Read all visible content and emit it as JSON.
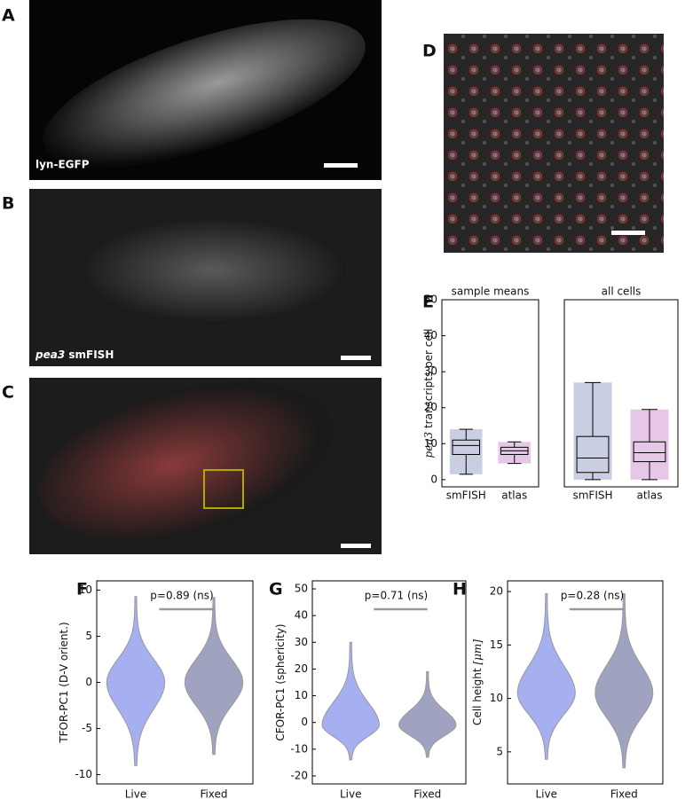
{
  "panels": [
    {
      "label": "A",
      "caption": "lyn-EGFP"
    },
    {
      "label": "B",
      "caption_italic": "pea3",
      "caption": "smFISH"
    },
    {
      "label": "C"
    },
    {
      "label": "D"
    },
    {
      "label": "E"
    },
    {
      "label": "F"
    },
    {
      "label": "G"
    },
    {
      "label": "H"
    }
  ],
  "chart_data": [
    {
      "type": "box",
      "title": "sample means",
      "ylabel_italic": "pea3",
      "ylabel": "transcripts per cell",
      "categories": [
        "smFISH",
        "atlas"
      ],
      "colors": [
        "#2a3a8c",
        "#a020a0"
      ],
      "whislo": [
        1.5,
        4.5
      ],
      "q1": [
        7,
        7
      ],
      "med": [
        9.5,
        8
      ],
      "q3": [
        11,
        9
      ],
      "whishi": [
        14,
        10.5
      ],
      "ylim": [
        -2,
        50
      ],
      "yticks": [
        0,
        10,
        20,
        30,
        40,
        50
      ]
    },
    {
      "type": "box",
      "title": "all cells",
      "categories": [
        "smFISH",
        "atlas"
      ],
      "colors": [
        "#2a3a8c",
        "#a020a0"
      ],
      "whislo": [
        0,
        0
      ],
      "q1": [
        2,
        5
      ],
      "med": [
        6,
        7.5
      ],
      "q3": [
        12,
        10.5
      ],
      "whishi": [
        27,
        19.5
      ],
      "ylim": [
        -2,
        50
      ]
    },
    {
      "type": "violin",
      "ylabel": "TFOR-PC1 (D-V orient.)",
      "annotation": "p=0.89 (ns)",
      "categories": [
        "Live",
        "Fixed"
      ],
      "colors": [
        "#3a50e0",
        "#2a3470"
      ],
      "min": [
        -9,
        -7.8
      ],
      "max": [
        9.3,
        9.2
      ],
      "median": [
        0,
        0
      ],
      "ylim": [
        -11,
        11
      ],
      "yticks": [
        -10,
        -5,
        0,
        5,
        10
      ]
    },
    {
      "type": "violin",
      "ylabel": "CFOR-PC1 (sphericity)",
      "annotation": "p=0.71 (ns)",
      "categories": [
        "Live",
        "Fixed"
      ],
      "colors": [
        "#3a50e0",
        "#2a3470"
      ],
      "min": [
        -14,
        -13
      ],
      "max": [
        30,
        19
      ],
      "median": [
        -1,
        -1
      ],
      "ylim": [
        -23,
        53
      ],
      "yticks": [
        -20,
        -10,
        0,
        10,
        20,
        30,
        40,
        50
      ]
    },
    {
      "type": "violin",
      "ylabel": "Cell height",
      "ylabel_unit": "[μm]",
      "annotation": "p=0.28 (ns)",
      "categories": [
        "Live",
        "Fixed"
      ],
      "colors": [
        "#3a50e0",
        "#2a3470"
      ],
      "min": [
        4.3,
        3.5
      ],
      "max": [
        19.8,
        19.8
      ],
      "median": [
        10.5,
        10.5
      ],
      "ylim": [
        2,
        21
      ],
      "yticks": [
        5,
        10,
        15,
        20
      ]
    }
  ]
}
